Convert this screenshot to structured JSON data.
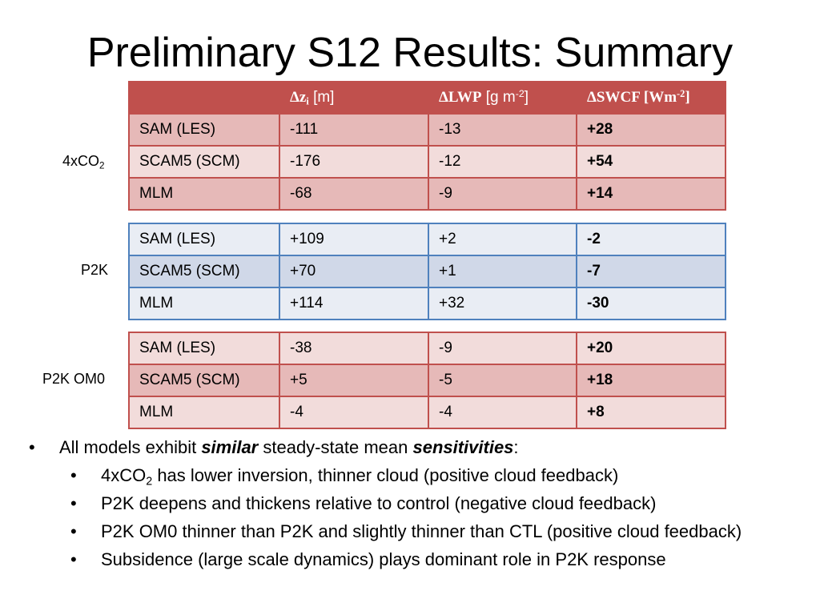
{
  "title": "Preliminary S12 Results:  Summary",
  "table_header": {
    "blank": "",
    "dz": {
      "delta": "Δ",
      "var": "z",
      "sub": "i",
      "unit": " [m]"
    },
    "lwp": {
      "delta": "Δ",
      "var": "LWP",
      "unit_pre": " [g m",
      "sup": "-2",
      "unit_post": "]"
    },
    "swcf": {
      "delta": "Δ",
      "var": "SWCF",
      "unit_pre": " [Wm",
      "sup": "-2",
      "unit_post": "]"
    }
  },
  "groups": [
    {
      "label_main": "4xCO",
      "label_sub": "2",
      "rows": [
        {
          "model": "SAM (LES)",
          "dz": "-111",
          "lwp": "-13",
          "swcf": "+28"
        },
        {
          "model": "SCAM5 (SCM)",
          "dz": "-176",
          "lwp": "-12",
          "swcf": "+54"
        },
        {
          "model": "MLM",
          "dz": "-68",
          "lwp": "-9",
          "swcf": "+14"
        }
      ]
    },
    {
      "label_main": "P2K",
      "rows": [
        {
          "model": "SAM (LES)",
          "dz": "+109",
          "lwp": "+2",
          "swcf": "-2"
        },
        {
          "model": "SCAM5 (SCM)",
          "dz": "+70",
          "lwp": "+1",
          "swcf": "-7"
        },
        {
          "model": "MLM",
          "dz": "+114",
          "lwp": "+32",
          "swcf": "-30"
        }
      ]
    },
    {
      "label_main": "P2K OM0",
      "rows": [
        {
          "model": "SAM (LES)",
          "dz": "-38",
          "lwp": "-9",
          "swcf": "+20"
        },
        {
          "model": "SCAM5 (SCM)",
          "dz": "+5",
          "lwp": "-5",
          "swcf": "+18"
        },
        {
          "model": "MLM",
          "dz": "-4",
          "lwp": "-4",
          "swcf": "+8"
        }
      ]
    }
  ],
  "bullet_glyph": "•",
  "bullets": {
    "main": {
      "t1": "All models exhibit ",
      "e1": "similar",
      "t2": " steady-state mean ",
      "e2": "sensitivities",
      "t3": ":"
    },
    "sub": [
      {
        "pre": "4xCO",
        "sub": "2",
        "post": " has lower inversion, thinner cloud (positive cloud feedback)"
      },
      {
        "text": "P2K deepens and thickens relative to control (negative cloud feedback)"
      },
      {
        "text": "P2K OM0 thinner than P2K and slightly thinner than CTL (positive cloud feedback)"
      },
      {
        "text": "Subsidence (large scale dynamics) plays dominant role in P2K response"
      }
    ]
  },
  "colors": {
    "red_header": "#c0504d",
    "red_light": "#f2dcdb",
    "red_dark": "#e6b9b8",
    "blue_border": "#4f81bd",
    "blue_light": "#e9edf4",
    "blue_dark": "#d0d8e8"
  }
}
